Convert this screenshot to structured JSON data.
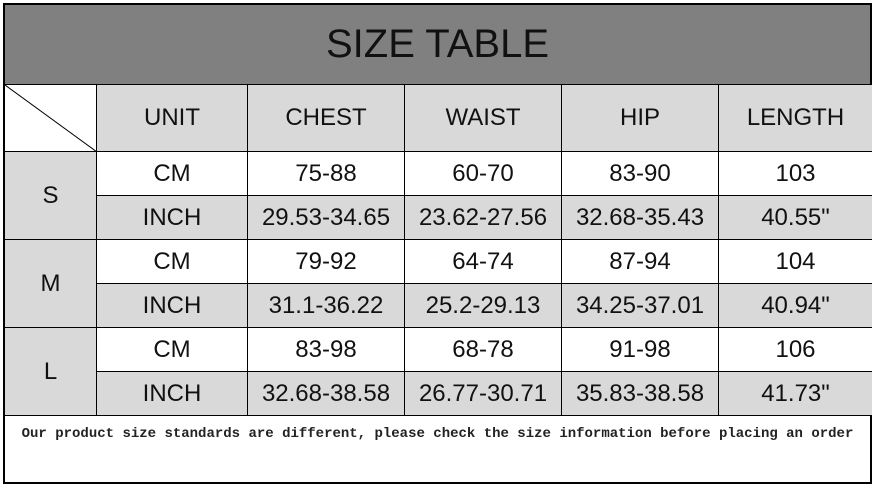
{
  "title": "SIZE TABLE",
  "headers": [
    "UNIT",
    "CHEST",
    "WAIST",
    "HIP",
    "LENGTH"
  ],
  "sizes": [
    {
      "size": "S",
      "rows": [
        [
          "CM",
          "75-88",
          "60-70",
          "83-90",
          "103"
        ],
        [
          "INCH",
          "29.53-34.65",
          "23.62-27.56",
          "32.68-35.43",
          "40.55\""
        ]
      ]
    },
    {
      "size": "M",
      "rows": [
        [
          "CM",
          "79-92",
          "64-74",
          "87-94",
          "104"
        ],
        [
          "INCH",
          "31.1-36.22",
          "25.2-29.13",
          "34.25-37.01",
          "40.94\""
        ]
      ]
    },
    {
      "size": "L",
      "rows": [
        [
          "CM",
          "83-98",
          "68-78",
          "91-98",
          "106"
        ],
        [
          "INCH",
          "32.68-38.58",
          "26.77-30.71",
          "35.83-38.58",
          "41.73\""
        ]
      ]
    }
  ],
  "footer": "Our product size standards are different, please check the size information before placing an order",
  "colors": {
    "title_bg": "#808080",
    "shaded": "#d9d9d9"
  }
}
